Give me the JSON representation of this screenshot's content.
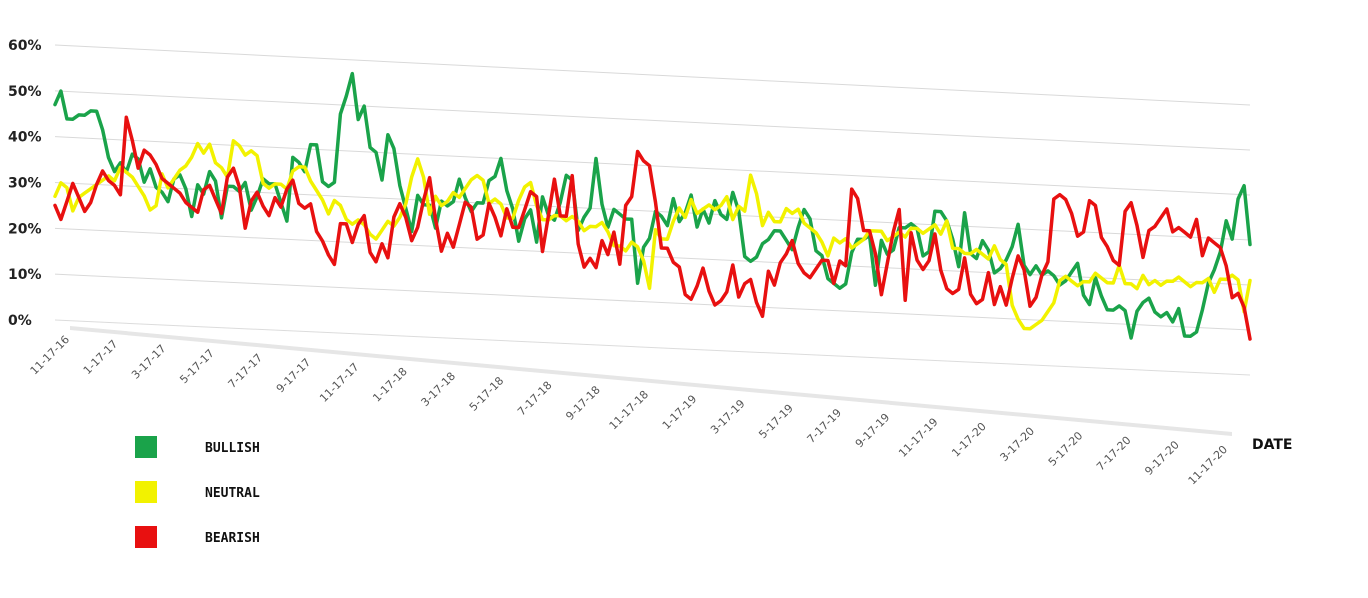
{
  "chart_data": {
    "type": "line",
    "title": "",
    "xlabel": "DATE",
    "ylabel": "",
    "ylim": [
      0,
      60
    ],
    "yticks": [
      "0%",
      "10%",
      "20%",
      "30%",
      "40%",
      "50%",
      "60%"
    ],
    "x_tick_labels": [
      "11-17-16",
      "1-17-17",
      "3-17-17",
      "5-17-17",
      "7-17-17",
      "9-17-17",
      "11-17-17",
      "1-17-18",
      "3-17-18",
      "5-17-18",
      "7-17-18",
      "9-17-18",
      "11-17-18",
      "1-17-19",
      "3-17-19",
      "5-17-19",
      "7-17-19",
      "9-17-19",
      "11-17-19",
      "1-17-20",
      "3-17-20",
      "5-17-20",
      "7-17-20",
      "9-17-20",
      "11-17-20"
    ],
    "x_range": [
      "2016-11-17",
      "2020-11-17"
    ],
    "grid": true,
    "legend_position": "bottom-left",
    "series": [
      {
        "name": "BULLISH",
        "color": "#1aa34a",
        "values": [
          47,
          50,
          44,
          44,
          45,
          45,
          46,
          46,
          42,
          36,
          33,
          35,
          33,
          37,
          36,
          31,
          34,
          30,
          29,
          27,
          32,
          33,
          30,
          24,
          31,
          29,
          34,
          32,
          24,
          31,
          31,
          30,
          32,
          26,
          29,
          33,
          32,
          32,
          28,
          24,
          38,
          37,
          35,
          41,
          41,
          33,
          32,
          33,
          48,
          52,
          57,
          47,
          50,
          41,
          40,
          34,
          44,
          41,
          33,
          28,
          23,
          31,
          29,
          29,
          24,
          30,
          29,
          30,
          35,
          31,
          28,
          30,
          30,
          35,
          36,
          40,
          33,
          29,
          22,
          27,
          29,
          22,
          32,
          28,
          27,
          31,
          37,
          36,
          25,
          28,
          30,
          41,
          31,
          26,
          30,
          29,
          28,
          28,
          14,
          22,
          24,
          30,
          29,
          27,
          33,
          28,
          30,
          34,
          27,
          31,
          28,
          33,
          30,
          29,
          35,
          31,
          21,
          20,
          21,
          24,
          25,
          27,
          27,
          25,
          23,
          28,
          32,
          30,
          23,
          22,
          17,
          16,
          15,
          16,
          23,
          26,
          26,
          27,
          16,
          26,
          23,
          24,
          29,
          29,
          30,
          29,
          23,
          24,
          33,
          33,
          31,
          27,
          21,
          33,
          24,
          23,
          27,
          25,
          20,
          21,
          23,
          26,
          31,
          22,
          20,
          22,
          20,
          21,
          20,
          18,
          19,
          21,
          23,
          16,
          14,
          20,
          16,
          13,
          13,
          14,
          13,
          7,
          13,
          15,
          16,
          13,
          12,
          13,
          11,
          14,
          8,
          8,
          9,
          14,
          20,
          23,
          27,
          34,
          30,
          39,
          42,
          29
        ]
      },
      {
        "name": "NEUTRAL",
        "color": "#f2f200",
        "values": [
          27,
          30,
          29,
          24,
          27,
          28,
          29,
          30,
          31,
          32,
          31,
          34,
          33,
          32,
          30,
          28,
          25,
          26,
          33,
          30,
          32,
          34,
          35,
          37,
          40,
          38,
          40,
          36,
          35,
          33,
          41,
          40,
          38,
          39,
          38,
          32,
          31,
          32,
          32,
          31,
          35,
          36,
          36,
          33,
          31,
          29,
          26,
          29,
          28,
          25,
          24,
          25,
          24,
          22,
          21,
          23,
          25,
          24,
          26,
          29,
          35,
          39,
          35,
          27,
          31,
          29,
          30,
          32,
          31,
          33,
          35,
          36,
          35,
          30,
          31,
          30,
          27,
          27,
          31,
          34,
          35,
          30,
          27,
          27,
          28,
          28,
          27,
          28,
          27,
          25,
          26,
          26,
          27,
          25,
          22,
          22,
          21,
          23,
          22,
          19,
          13,
          26,
          24,
          24,
          28,
          31,
          29,
          33,
          30,
          31,
          32,
          31,
          32,
          34,
          29,
          32,
          31,
          39,
          35,
          28,
          31,
          29,
          29,
          32,
          31,
          32,
          29,
          28,
          27,
          25,
          22,
          26,
          25,
          26,
          24,
          25,
          26,
          28,
          28,
          28,
          26,
          27,
          28,
          27,
          29,
          29,
          28,
          29,
          30,
          28,
          31,
          25,
          25,
          24,
          24,
          25,
          24,
          23,
          26,
          23,
          22,
          13,
          10,
          8,
          8,
          9,
          10,
          12,
          14,
          19,
          20,
          19,
          18,
          19,
          19,
          21,
          20,
          19,
          19,
          23,
          19,
          19,
          18,
          21,
          19,
          20,
          19,
          20,
          20,
          21,
          20,
          19,
          20,
          20,
          21,
          18,
          21,
          21,
          22,
          21,
          14,
          21
        ]
      },
      {
        "name": "BEARISH",
        "color": "#e81010",
        "values": [
          25,
          22,
          26,
          30,
          27,
          24,
          26,
          30,
          33,
          31,
          30,
          28,
          45,
          40,
          34,
          38,
          37,
          35,
          32,
          31,
          30,
          29,
          27,
          26,
          25,
          30,
          31,
          28,
          25,
          33,
          35,
          31,
          22,
          28,
          30,
          27,
          25,
          29,
          27,
          31,
          33,
          28,
          27,
          28,
          22,
          20,
          17,
          15,
          24,
          24,
          20,
          24,
          26,
          18,
          16,
          20,
          17,
          26,
          29,
          26,
          21,
          24,
          30,
          35,
          26,
          19,
          23,
          20,
          25,
          30,
          29,
          22,
          23,
          30,
          27,
          23,
          29,
          25,
          25,
          29,
          33,
          32,
          20,
          28,
          36,
          28,
          28,
          37,
          22,
          17,
          19,
          17,
          23,
          20,
          25,
          18,
          31,
          33,
          43,
          41,
          40,
          32,
          22,
          22,
          19,
          18,
          12,
          11,
          14,
          18,
          13,
          10,
          11,
          13,
          19,
          12,
          15,
          16,
          11,
          8,
          18,
          15,
          20,
          22,
          25,
          20,
          18,
          17,
          19,
          21,
          21,
          16,
          21,
          20,
          37,
          35,
          28,
          28,
          23,
          14,
          21,
          28,
          33,
          13,
          28,
          22,
          20,
          22,
          28,
          20,
          16,
          15,
          16,
          23,
          15,
          13,
          14,
          20,
          13,
          17,
          13,
          19,
          24,
          21,
          13,
          15,
          20,
          23,
          37,
          38,
          37,
          34,
          29,
          30,
          37,
          36,
          29,
          27,
          24,
          23,
          35,
          37,
          32,
          25,
          31,
          32,
          34,
          36,
          31,
          32,
          31,
          30,
          34,
          26,
          30,
          29,
          28,
          24,
          17,
          18,
          15,
          8
        ]
      }
    ]
  }
}
